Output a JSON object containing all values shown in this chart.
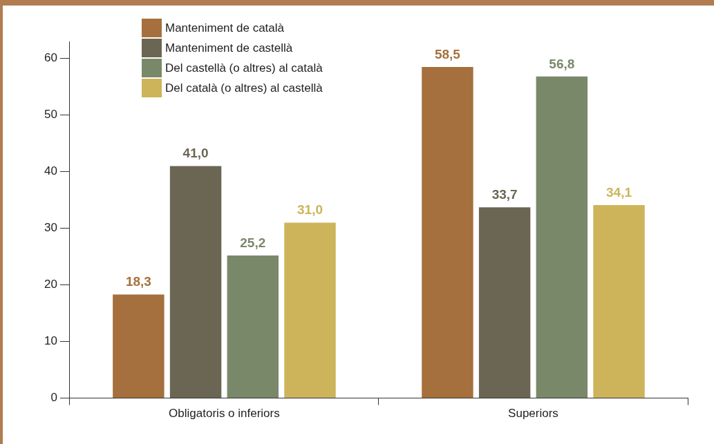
{
  "chart_data": {
    "type": "bar",
    "categories": [
      "Obligatoris o inferiors",
      "Superiors"
    ],
    "series": [
      {
        "name": "Manteniment de català",
        "color": "#a5703d",
        "values": [
          18.3,
          58.5
        ],
        "value_labels": [
          "18,3",
          "58,5"
        ]
      },
      {
        "name": "Manteniment de castellà",
        "color": "#6b6553",
        "values": [
          41.0,
          33.7
        ],
        "value_labels": [
          "41,0",
          "33,7"
        ]
      },
      {
        "name": "Del castellà (o altres) al català",
        "color": "#7a886a",
        "values": [
          25.2,
          56.8
        ],
        "value_labels": [
          "25,2",
          "56,8"
        ]
      },
      {
        "name": "Del català (o altres) al castellà",
        "color": "#cdb45a",
        "values": [
          31.0,
          34.1
        ],
        "value_labels": [
          "31,0",
          "34,1"
        ]
      }
    ],
    "ylim": [
      0,
      63
    ],
    "yticks": [
      0,
      10,
      20,
      30,
      40,
      50,
      60
    ],
    "grid": false,
    "legend": "top left"
  }
}
